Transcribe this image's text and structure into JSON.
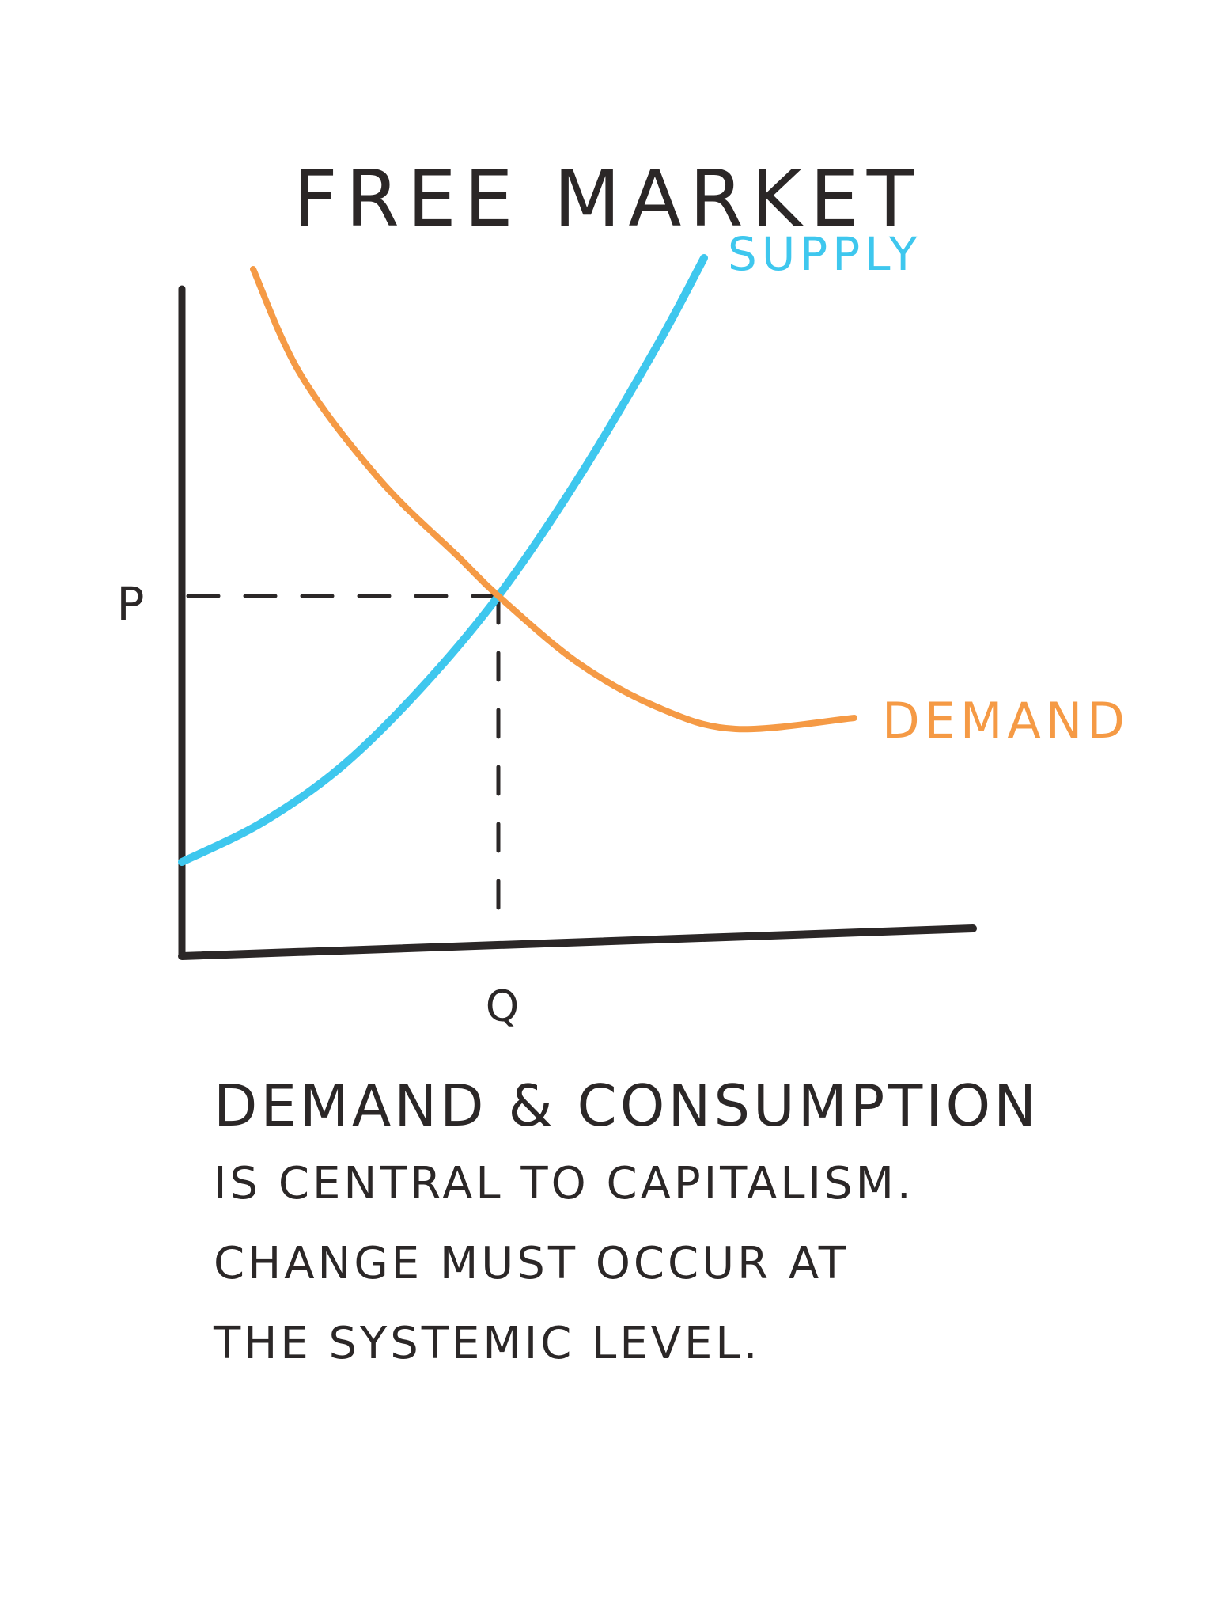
{
  "title": "FREE MARKET",
  "chart_data": {
    "type": "line",
    "xlabel": "",
    "ylabel": "",
    "x_tick_labels": [
      "Q"
    ],
    "y_tick_labels": [
      "P"
    ],
    "equilibrium": {
      "label_x": "Q",
      "label_y": "P",
      "x": 4,
      "y": 6.5
    },
    "xlim": [
      0,
      10
    ],
    "ylim": [
      0,
      12
    ],
    "series": [
      {
        "name": "SUPPLY",
        "color": "#3ec7ee",
        "x": [
          0,
          1,
          2,
          3,
          4,
          5,
          6,
          6.6
        ],
        "y": [
          1.7,
          2.4,
          3.4,
          4.8,
          6.5,
          8.6,
          11.0,
          12.6
        ]
      },
      {
        "name": "DEMAND",
        "color": "#f59a45",
        "x": [
          0.9,
          1.5,
          2.5,
          3.5,
          4,
          5,
          6,
          7,
          8.5
        ],
        "y": [
          12.4,
          10.5,
          8.6,
          7.2,
          6.5,
          5.3,
          4.5,
          4.1,
          4.3
        ]
      }
    ]
  },
  "caption": {
    "lines": [
      "DEMAND & CONSUMPTION",
      "IS CENTRAL TO CAPITALISM.",
      "CHANGE MUST OCCUR AT",
      "THE SYSTEMIC LEVEL."
    ]
  },
  "colors": {
    "ink": "#2b2727",
    "supply": "#3ec7ee",
    "demand": "#f59a45"
  }
}
